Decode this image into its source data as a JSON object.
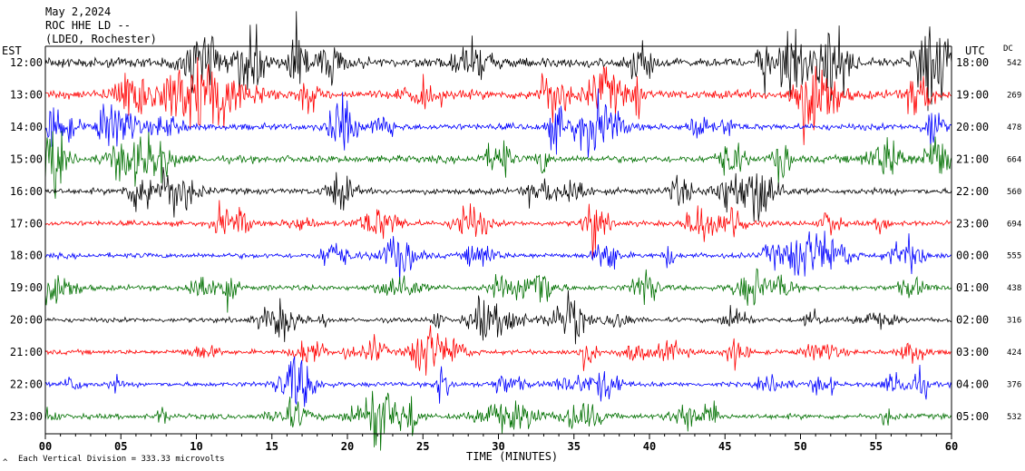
{
  "header": {
    "date": "May 2,2024",
    "station": "ROC HHE LD --",
    "network": "(LDEO, Rochester)"
  },
  "labels": {
    "left_zone": "EST",
    "right_zone": "UTC",
    "dc_header": "DC",
    "x_axis_title": "TIME (MINUTES)",
    "scale_note": "Each Vertical Division = 333.33 microvolts",
    "corner_mark": "^"
  },
  "colors": {
    "cycle": [
      "#000000",
      "#ff0000",
      "#0000ff",
      "#007000"
    ],
    "axes": "#000000",
    "background": "#ffffff"
  },
  "chart_data": {
    "type": "line",
    "subtype": "helicorder seismogram",
    "x_range": [
      0,
      60
    ],
    "x_ticks": [
      "00",
      "05",
      "10",
      "15",
      "20",
      "25",
      "30",
      "35",
      "40",
      "45",
      "50",
      "55",
      "60"
    ],
    "rows": [
      {
        "est": "12:00",
        "utc": "18:00",
        "dc": "542",
        "color": "#000000",
        "amplitude": 0.85
      },
      {
        "est": "13:00",
        "utc": "19:00",
        "dc": "269",
        "color": "#ff0000",
        "amplitude": 0.75
      },
      {
        "est": "14:00",
        "utc": "20:00",
        "dc": "478",
        "color": "#0000ff",
        "amplitude": 0.55
      },
      {
        "est": "15:00",
        "utc": "21:00",
        "dc": "664",
        "color": "#007000",
        "amplitude": 0.6
      },
      {
        "est": "16:00",
        "utc": "22:00",
        "dc": "560",
        "color": "#000000",
        "amplitude": 0.5
      },
      {
        "est": "17:00",
        "utc": "23:00",
        "dc": "694",
        "color": "#ff0000",
        "amplitude": 0.45
      },
      {
        "est": "18:00",
        "utc": "00:00",
        "dc": "555",
        "color": "#0000ff",
        "amplitude": 0.45
      },
      {
        "est": "19:00",
        "utc": "01:00",
        "dc": "438",
        "color": "#007000",
        "amplitude": 0.45
      },
      {
        "est": "20:00",
        "utc": "02:00",
        "dc": "316",
        "color": "#000000",
        "amplitude": 0.4
      },
      {
        "est": "21:00",
        "utc": "03:00",
        "dc": "424",
        "color": "#ff0000",
        "amplitude": 0.4
      },
      {
        "est": "22:00",
        "utc": "04:00",
        "dc": "376",
        "color": "#0000ff",
        "amplitude": 0.4
      },
      {
        "est": "23:00",
        "utc": "05:00",
        "dc": "532",
        "color": "#007000",
        "amplitude": 0.45
      }
    ]
  }
}
